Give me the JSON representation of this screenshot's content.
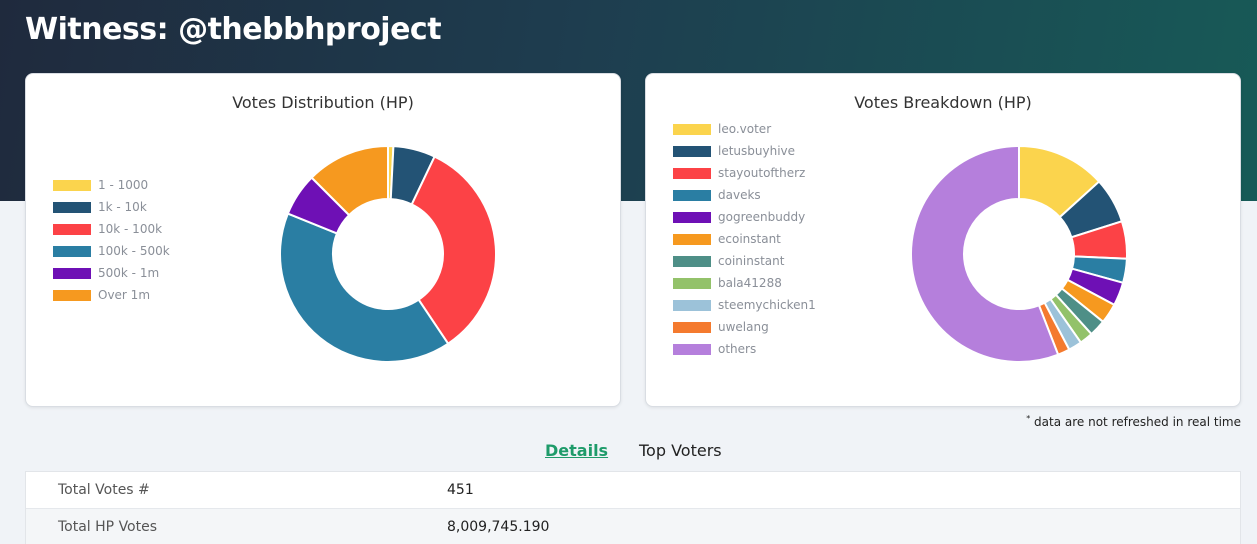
{
  "page": {
    "title": "Witness: @thebbhproject"
  },
  "distribution": {
    "title": "Votes Distribution (HP)",
    "legend": [
      {
        "label": "1 - 1000",
        "color": "#fbd44d"
      },
      {
        "label": "1k - 10k",
        "color": "#235375"
      },
      {
        "label": "10k - 100k",
        "color": "#fc4246"
      },
      {
        "label": "100k - 500k",
        "color": "#2a7ea3"
      },
      {
        "label": "500k - 1m",
        "color": "#6e10b5"
      },
      {
        "label": "Over 1m",
        "color": "#f6991f"
      }
    ]
  },
  "breakdown": {
    "title": "Votes Breakdown (HP)",
    "legend": [
      {
        "label": "leo.voter",
        "color": "#fbd44d"
      },
      {
        "label": "letusbuyhive",
        "color": "#235375"
      },
      {
        "label": "stayoutoftherz",
        "color": "#fc4246"
      },
      {
        "label": "daveks",
        "color": "#2a7ea3"
      },
      {
        "label": "gogreenbuddy",
        "color": "#6e10b5"
      },
      {
        "label": "ecoinstant",
        "color": "#f6991f"
      },
      {
        "label": "coininstant",
        "color": "#4e8f87"
      },
      {
        "label": "bala41288",
        "color": "#93c26a"
      },
      {
        "label": "steemychicken1",
        "color": "#9cc2d9"
      },
      {
        "label": "uwelang",
        "color": "#f47a2e"
      },
      {
        "label": "others",
        "color": "#b57fdc"
      }
    ]
  },
  "chart_data": [
    {
      "type": "pie",
      "title": "Votes Distribution (HP)",
      "categories": [
        "1 - 1000",
        "1k - 10k",
        "10k - 100k",
        "100k - 500k",
        "500k - 1m",
        "Over 1m"
      ],
      "values": [
        0.8,
        6.3,
        33.5,
        40.5,
        6.4,
        12.5
      ]
    },
    {
      "type": "pie",
      "title": "Votes Breakdown (HP)",
      "categories": [
        "leo.voter",
        "letusbuyhive",
        "stayoutoftherz",
        "daveks",
        "gogreenbuddy",
        "ecoinstant",
        "coininstant",
        "bala41288",
        "steemychicken1",
        "uwelang",
        "others"
      ],
      "values": [
        13.3,
        6.8,
        5.6,
        3.6,
        3.5,
        3.0,
        2.5,
        2.0,
        2.0,
        1.8,
        55.9
      ]
    }
  ],
  "footnote": {
    "mark": "*",
    "text": " data are not refreshed in real time"
  },
  "tabs": {
    "details": "Details",
    "top_voters": "Top Voters"
  },
  "details_table": [
    {
      "label": "Total Votes #",
      "value": "451"
    },
    {
      "label": "Total HP Votes",
      "value": "8,009,745.190"
    }
  ]
}
